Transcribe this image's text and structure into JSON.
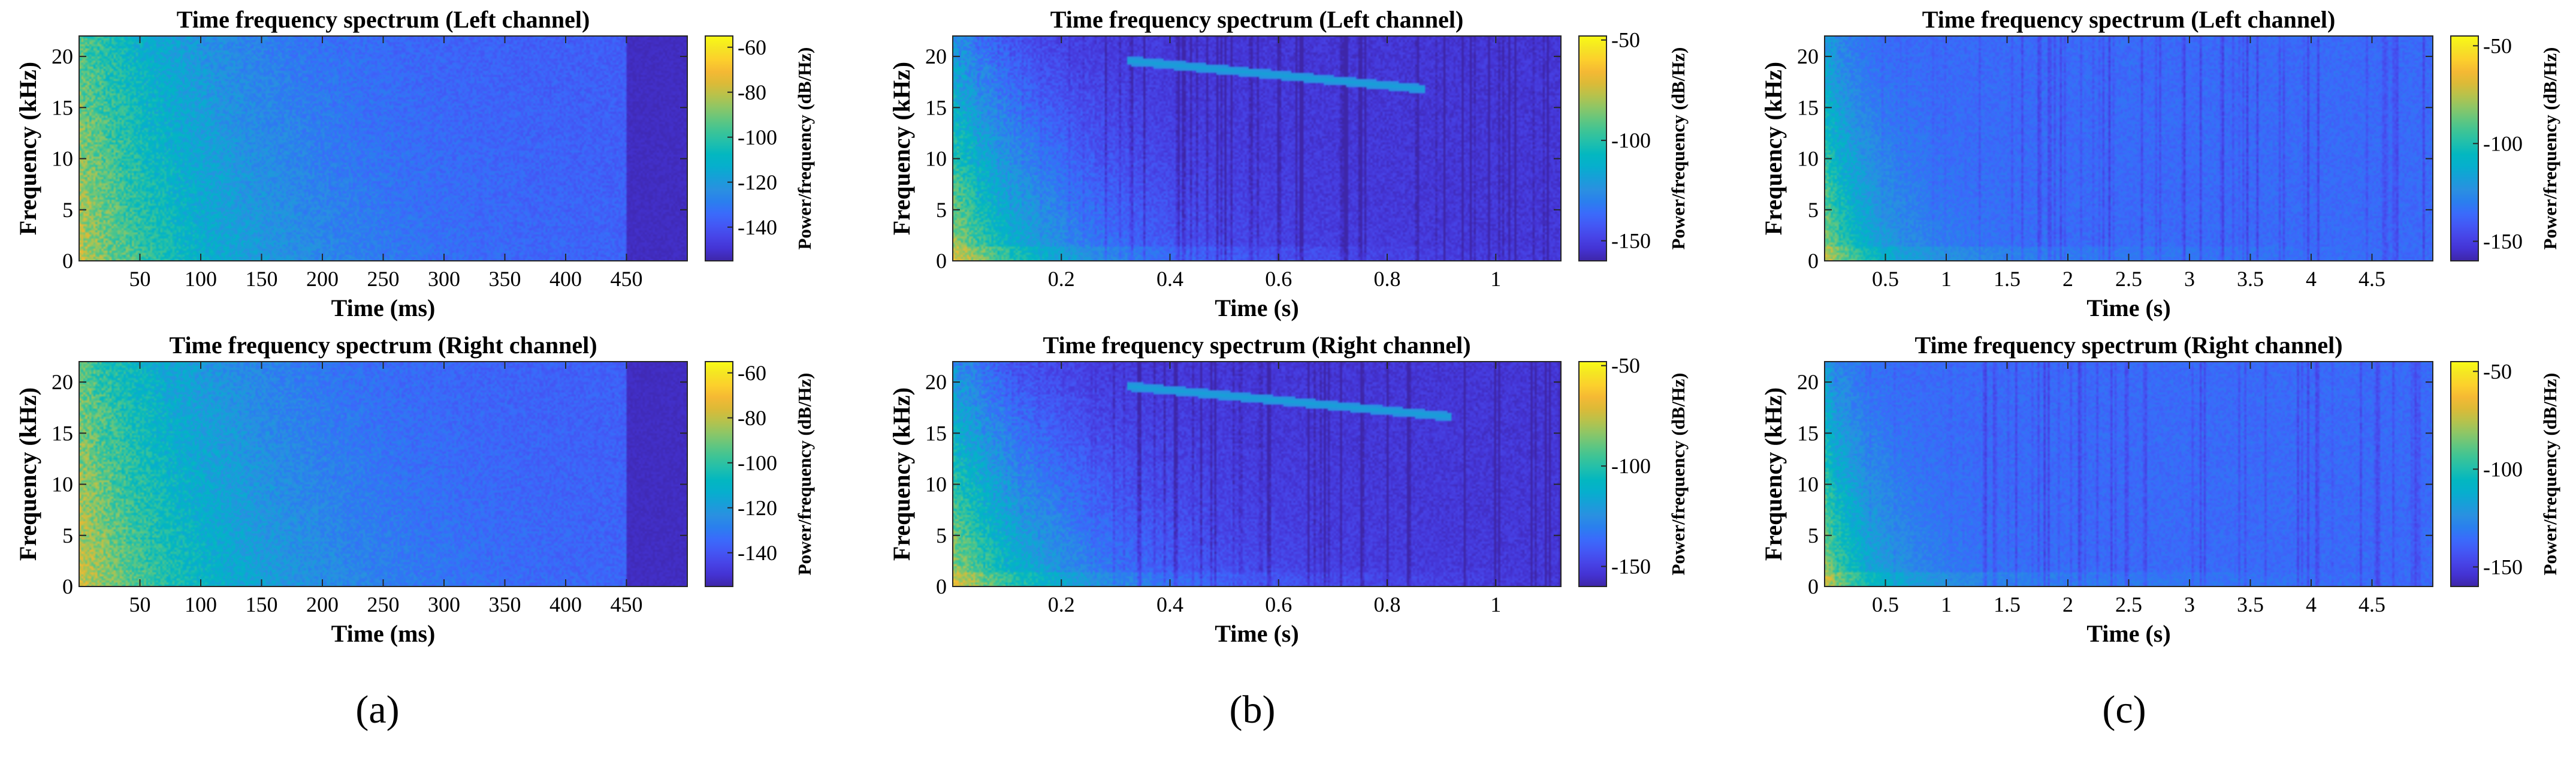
{
  "colormap": [
    "#3e26a8",
    "#4433d3",
    "#4744e7",
    "#4358f5",
    "#3a6bfb",
    "#2a7fee",
    "#2a90e1",
    "#179fd8",
    "#06afcd",
    "#03b7c0",
    "#21bfac",
    "#3ec495",
    "#65c67e",
    "#8fc665",
    "#b8c24b",
    "#dcba37",
    "#f5b934",
    "#fcd02c",
    "#f5e523",
    "#f9fb15"
  ],
  "panel_labels": [
    "(a)",
    "(b)",
    "(c)"
  ],
  "chart_data": [
    {
      "type": "heatmap",
      "panel": "(a)",
      "title": "Time frequency spectrum (Left channel)",
      "xlabel": "Time (ms)",
      "ylabel": "Frequency (kHz)",
      "clabel": "Power/frequency (dB/Hz)",
      "xlim": [
        0,
        500
      ],
      "ylim": [
        0,
        22
      ],
      "clim": [
        -155,
        -55
      ],
      "xticks": [
        50,
        100,
        150,
        200,
        250,
        300,
        350,
        400,
        450
      ],
      "xticklabels": [
        "50",
        "100",
        "150",
        "200",
        "250",
        "300",
        "350",
        "400",
        "450"
      ],
      "yticks": [
        0,
        5,
        10,
        15,
        20
      ],
      "yticklabels": [
        "0",
        "5",
        "10",
        "15",
        "20"
      ],
      "cticks": [
        -60,
        -80,
        -100,
        -120,
        -140
      ],
      "cticklabels": [
        "-60",
        "-80",
        "-100",
        "-120",
        "-140"
      ],
      "signal_end": 450,
      "signal_end_level": -152,
      "floor_db": -138,
      "peak_db": -80,
      "decay_time": 130,
      "freq_rolloff": 0.25,
      "chirp": null,
      "stripes": false
    },
    {
      "type": "heatmap",
      "panel": "(a)",
      "title": "Time frequency spectrum (Right channel)",
      "xlabel": "Time (ms)",
      "ylabel": "Frequency (kHz)",
      "clabel": "Power/frequency (dB/Hz)",
      "xlim": [
        0,
        500
      ],
      "ylim": [
        0,
        22
      ],
      "clim": [
        -155,
        -55
      ],
      "xticks": [
        50,
        100,
        150,
        200,
        250,
        300,
        350,
        400,
        450
      ],
      "xticklabels": [
        "50",
        "100",
        "150",
        "200",
        "250",
        "300",
        "350",
        "400",
        "450"
      ],
      "yticks": [
        0,
        5,
        10,
        15,
        20
      ],
      "yticklabels": [
        "0",
        "5",
        "10",
        "15",
        "20"
      ],
      "cticks": [
        -60,
        -80,
        -100,
        -120,
        -140
      ],
      "cticklabels": [
        "-60",
        "-80",
        "-100",
        "-120",
        "-140"
      ],
      "signal_end": 450,
      "signal_end_level": -152,
      "floor_db": -138,
      "peak_db": -78,
      "decay_time": 140,
      "freq_rolloff": 0.25,
      "chirp": null,
      "stripes": false
    },
    {
      "type": "heatmap",
      "panel": "(b)",
      "title": "Time frequency spectrum (Left channel)",
      "xlabel": "Time (s)",
      "ylabel": "Frequency (kHz)",
      "clabel": "Power/frequency (dB/Hz)",
      "xlim": [
        0,
        1.12
      ],
      "ylim": [
        0,
        22
      ],
      "clim": [
        -160,
        -48
      ],
      "xticks": [
        0.2,
        0.4,
        0.6,
        0.8,
        1.0
      ],
      "xticklabels": [
        "0.2",
        "0.4",
        "0.6",
        "0.8",
        "1"
      ],
      "yticks": [
        0,
        5,
        10,
        15,
        20
      ],
      "yticklabels": [
        "0",
        "5",
        "10",
        "15",
        "20"
      ],
      "cticks": [
        -50,
        -100,
        -150
      ],
      "cticklabels": [
        "-50",
        "-100",
        "-150"
      ],
      "signal_end": null,
      "signal_end_level": null,
      "floor_db": -153,
      "peak_db": -78,
      "decay_time": 0.22,
      "freq_rolloff": 0.6,
      "chirp": {
        "t0": 0.32,
        "f0": 19.6,
        "t1": 0.87,
        "f1": 16.8
      },
      "stripes": true
    },
    {
      "type": "heatmap",
      "panel": "(b)",
      "title": "Time frequency spectrum (Right channel)",
      "xlabel": "Time (s)",
      "ylabel": "Frequency (kHz)",
      "clabel": "Power/frequency (dB/Hz)",
      "xlim": [
        0,
        1.12
      ],
      "ylim": [
        0,
        22
      ],
      "clim": [
        -160,
        -48
      ],
      "xticks": [
        0.2,
        0.4,
        0.6,
        0.8,
        1.0
      ],
      "xticklabels": [
        "0.2",
        "0.4",
        "0.6",
        "0.8",
        "1"
      ],
      "yticks": [
        0,
        5,
        10,
        15,
        20
      ],
      "yticklabels": [
        "0",
        "5",
        "10",
        "15",
        "20"
      ],
      "cticks": [
        -50,
        -100,
        -150
      ],
      "cticklabels": [
        "-50",
        "-100",
        "-150"
      ],
      "signal_end": null,
      "signal_end_level": null,
      "floor_db": -153,
      "peak_db": -78,
      "decay_time": 0.24,
      "freq_rolloff": 0.6,
      "chirp": {
        "t0": 0.32,
        "f0": 19.6,
        "t1": 0.92,
        "f1": 16.6
      },
      "stripes": true
    },
    {
      "type": "heatmap",
      "panel": "(c)",
      "title": "Time frequency spectrum (Left channel)",
      "xlabel": "Time (s)",
      "ylabel": "Frequency (kHz)",
      "clabel": "Power/frequency (dB/Hz)",
      "xlim": [
        0,
        5.0
      ],
      "ylim": [
        0,
        22
      ],
      "clim": [
        -160,
        -45
      ],
      "xticks": [
        0.5,
        1.0,
        1.5,
        2.0,
        2.5,
        3.0,
        3.5,
        4.0,
        4.5
      ],
      "xticklabels": [
        "0.5",
        "1",
        "1.5",
        "2",
        "2.5",
        "3",
        "3.5",
        "4",
        "4.5"
      ],
      "yticks": [
        0,
        5,
        10,
        15,
        20
      ],
      "yticklabels": [
        "0",
        "5",
        "10",
        "15",
        "20"
      ],
      "cticks": [
        -50,
        -100,
        -150
      ],
      "cticklabels": [
        "-50",
        "-100",
        "-150"
      ],
      "signal_end": null,
      "signal_end_level": null,
      "floor_db": -136,
      "peak_db": -78,
      "decay_time": 0.45,
      "freq_rolloff": 0.7,
      "chirp": null,
      "stripes": true
    },
    {
      "type": "heatmap",
      "panel": "(c)",
      "title": "Time frequency spectrum (Right channel)",
      "xlabel": "Time (s)",
      "ylabel": "Frequency (kHz)",
      "clabel": "Power/frequency (dB/Hz)",
      "xlim": [
        0,
        5.0
      ],
      "ylim": [
        0,
        22
      ],
      "clim": [
        -160,
        -45
      ],
      "xticks": [
        0.5,
        1.0,
        1.5,
        2.0,
        2.5,
        3.0,
        3.5,
        4.0,
        4.5
      ],
      "xticklabels": [
        "0.5",
        "1",
        "1.5",
        "2",
        "2.5",
        "3",
        "3.5",
        "4",
        "4.5"
      ],
      "yticks": [
        0,
        5,
        10,
        15,
        20
      ],
      "yticklabels": [
        "0",
        "5",
        "10",
        "15",
        "20"
      ],
      "cticks": [
        -50,
        -100,
        -150
      ],
      "cticklabels": [
        "-50",
        "-100",
        "-150"
      ],
      "signal_end": null,
      "signal_end_level": null,
      "floor_db": -136,
      "peak_db": -78,
      "decay_time": 0.45,
      "freq_rolloff": 0.7,
      "chirp": null,
      "stripes": true
    }
  ]
}
